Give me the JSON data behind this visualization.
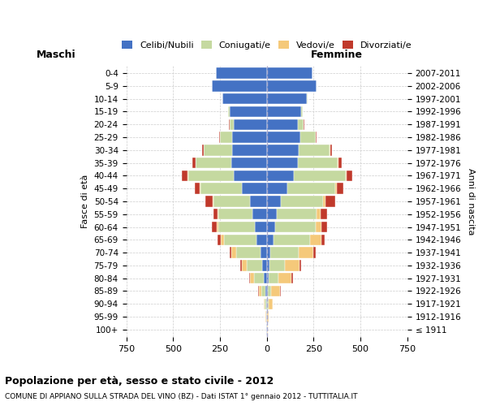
{
  "age_groups": [
    "100+",
    "95-99",
    "90-94",
    "85-89",
    "80-84",
    "75-79",
    "70-74",
    "65-69",
    "60-64",
    "55-59",
    "50-54",
    "45-49",
    "40-44",
    "35-39",
    "30-34",
    "25-29",
    "20-24",
    "15-19",
    "10-14",
    "5-9",
    "0-4"
  ],
  "birth_years": [
    "≤ 1911",
    "1912-1916",
    "1917-1921",
    "1922-1926",
    "1927-1931",
    "1932-1936",
    "1937-1941",
    "1942-1946",
    "1947-1951",
    "1952-1956",
    "1957-1961",
    "1962-1966",
    "1967-1971",
    "1972-1976",
    "1977-1981",
    "1982-1986",
    "1987-1991",
    "1992-1996",
    "1997-2001",
    "2002-2006",
    "2007-2011"
  ],
  "male_celibe": [
    2,
    2,
    4,
    8,
    15,
    25,
    35,
    55,
    65,
    75,
    90,
    135,
    175,
    190,
    185,
    185,
    175,
    200,
    235,
    295,
    270
  ],
  "male_coniugato": [
    1,
    2,
    8,
    20,
    55,
    80,
    130,
    175,
    195,
    185,
    195,
    220,
    245,
    190,
    150,
    65,
    25,
    5,
    2,
    0,
    0
  ],
  "male_vedovo": [
    0,
    2,
    6,
    15,
    20,
    30,
    25,
    15,
    8,
    5,
    5,
    3,
    2,
    1,
    1,
    1,
    0,
    0,
    0,
    0,
    0
  ],
  "male_divorziato": [
    0,
    0,
    0,
    2,
    3,
    5,
    8,
    20,
    25,
    20,
    40,
    25,
    30,
    15,
    10,
    5,
    3,
    1,
    0,
    0,
    0
  ],
  "female_celibe": [
    1,
    1,
    3,
    5,
    8,
    15,
    20,
    35,
    45,
    55,
    75,
    110,
    145,
    165,
    170,
    180,
    165,
    185,
    215,
    265,
    245
  ],
  "female_coniugata": [
    1,
    2,
    8,
    20,
    55,
    80,
    150,
    195,
    215,
    210,
    225,
    255,
    275,
    215,
    165,
    80,
    30,
    8,
    3,
    0,
    0
  ],
  "female_vedova": [
    2,
    5,
    20,
    45,
    70,
    80,
    80,
    60,
    30,
    20,
    15,
    10,
    5,
    3,
    2,
    2,
    1,
    0,
    0,
    0,
    0
  ],
  "female_divorziata": [
    0,
    0,
    1,
    3,
    5,
    8,
    10,
    20,
    30,
    35,
    50,
    35,
    30,
    15,
    10,
    5,
    3,
    1,
    0,
    0,
    0
  ],
  "color_celibe": "#4472c4",
  "color_coniugato": "#c5d9a0",
  "color_vedovo": "#f5c97a",
  "color_divorziato": "#c0392b",
  "title": "Popolazione per età, sesso e stato civile - 2012",
  "subtitle": "COMUNE DI APPIANO SULLA STRADA DEL VINO (BZ) - Dati ISTAT 1° gennaio 2012 - TUTTITALIA.IT",
  "xlabel_left": "Maschi",
  "xlabel_right": "Femmine",
  "ylabel_left": "Fasce di età",
  "ylabel_right": "Anni di nascita",
  "xlim": 750,
  "bg_color": "#ffffff",
  "grid_color": "#cccccc",
  "legend_labels": [
    "Celibi/Nubili",
    "Coniugati/e",
    "Vedovi/e",
    "Divorziati/e"
  ]
}
